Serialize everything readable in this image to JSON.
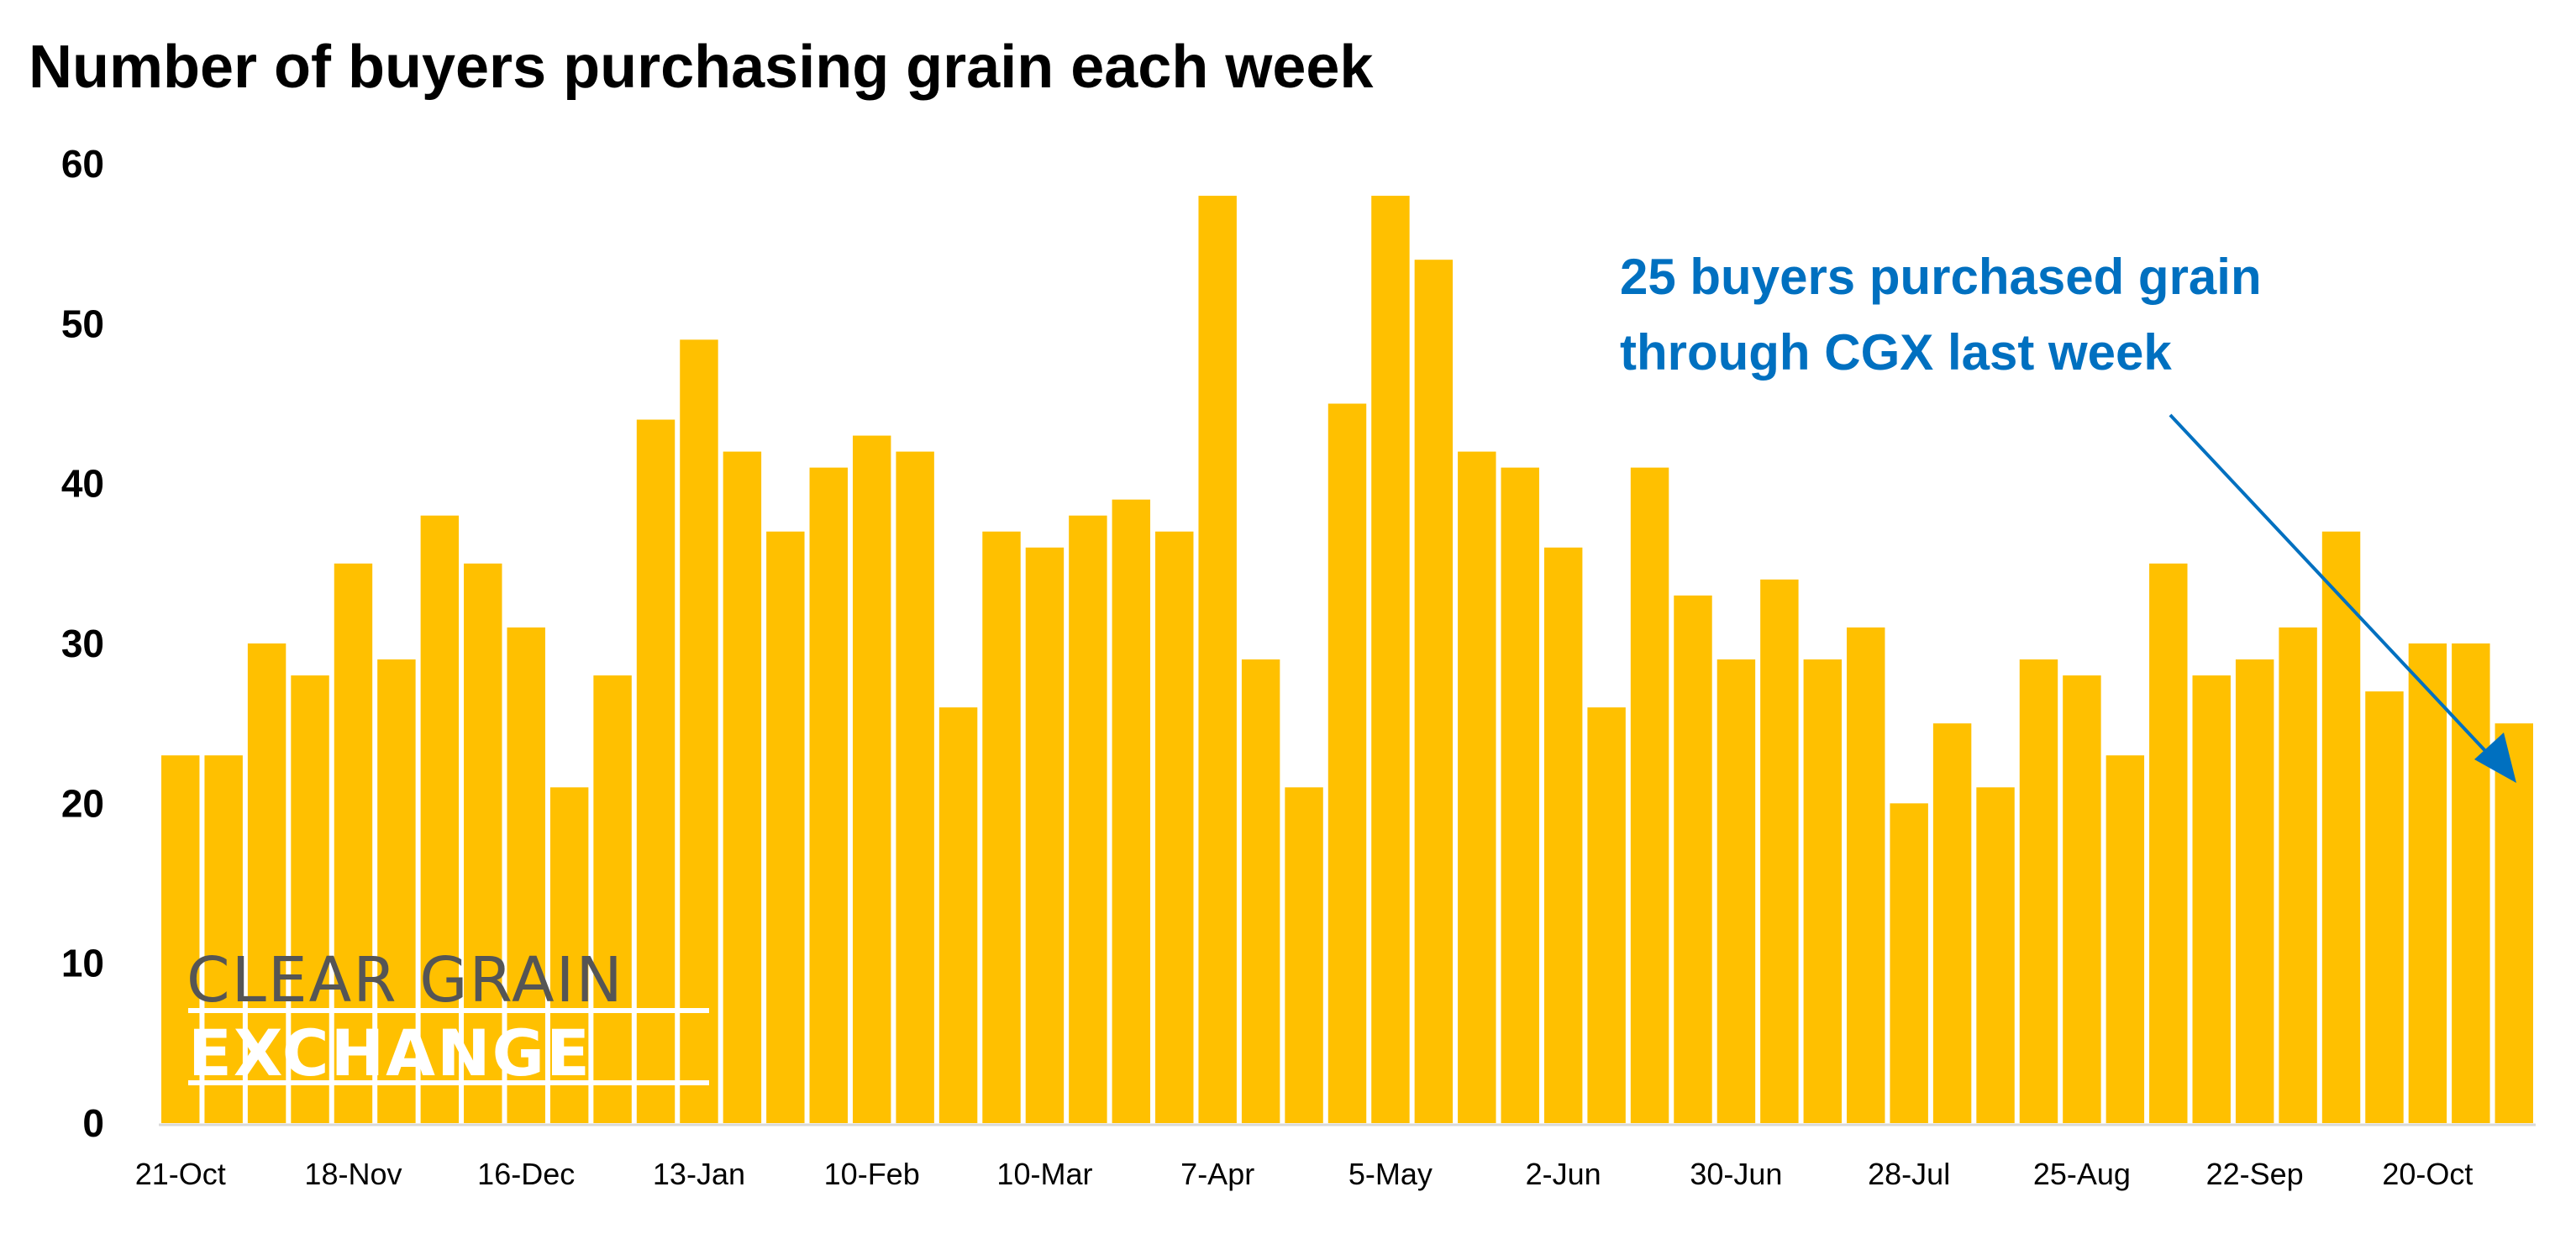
{
  "chart_data": {
    "type": "bar",
    "title": "Number of buyers purchasing grain each week",
    "xlabel": "",
    "ylabel": "",
    "ylim": [
      0,
      60
    ],
    "yticks": [
      0,
      10,
      20,
      30,
      40,
      50,
      60
    ],
    "grid": false,
    "bar_color": "#FFC000",
    "x_tick_labels": [
      {
        "index": 0,
        "label": "21-Oct"
      },
      {
        "index": 4,
        "label": "18-Nov"
      },
      {
        "index": 8,
        "label": "16-Dec"
      },
      {
        "index": 12,
        "label": "13-Jan"
      },
      {
        "index": 16,
        "label": "10-Feb"
      },
      {
        "index": 20,
        "label": "10-Mar"
      },
      {
        "index": 24,
        "label": "7-Apr"
      },
      {
        "index": 28,
        "label": "5-May"
      },
      {
        "index": 32,
        "label": "2-Jun"
      },
      {
        "index": 36,
        "label": "30-Jun"
      },
      {
        "index": 40,
        "label": "28-Jul"
      },
      {
        "index": 44,
        "label": "25-Aug"
      },
      {
        "index": 48,
        "label": "22-Sep"
      },
      {
        "index": 52,
        "label": "20-Oct"
      }
    ],
    "values": [
      23,
      23,
      30,
      28,
      35,
      29,
      38,
      35,
      31,
      21,
      28,
      44,
      49,
      42,
      37,
      41,
      43,
      42,
      26,
      37,
      36,
      38,
      39,
      37,
      58,
      29,
      21,
      45,
      58,
      54,
      42,
      41,
      36,
      26,
      41,
      33,
      29,
      34,
      29,
      31,
      20,
      25,
      21,
      29,
      28,
      23,
      35,
      28,
      29,
      31,
      37,
      27,
      30,
      30,
      25
    ],
    "annotation": {
      "lines": [
        "25 buyers purchased grain",
        "through CGX last week"
      ],
      "color": "#0070C0",
      "points_to_index": 54
    }
  },
  "logo": {
    "line1": "CLEAR GRAIN",
    "line2": "EXCHANGE"
  }
}
